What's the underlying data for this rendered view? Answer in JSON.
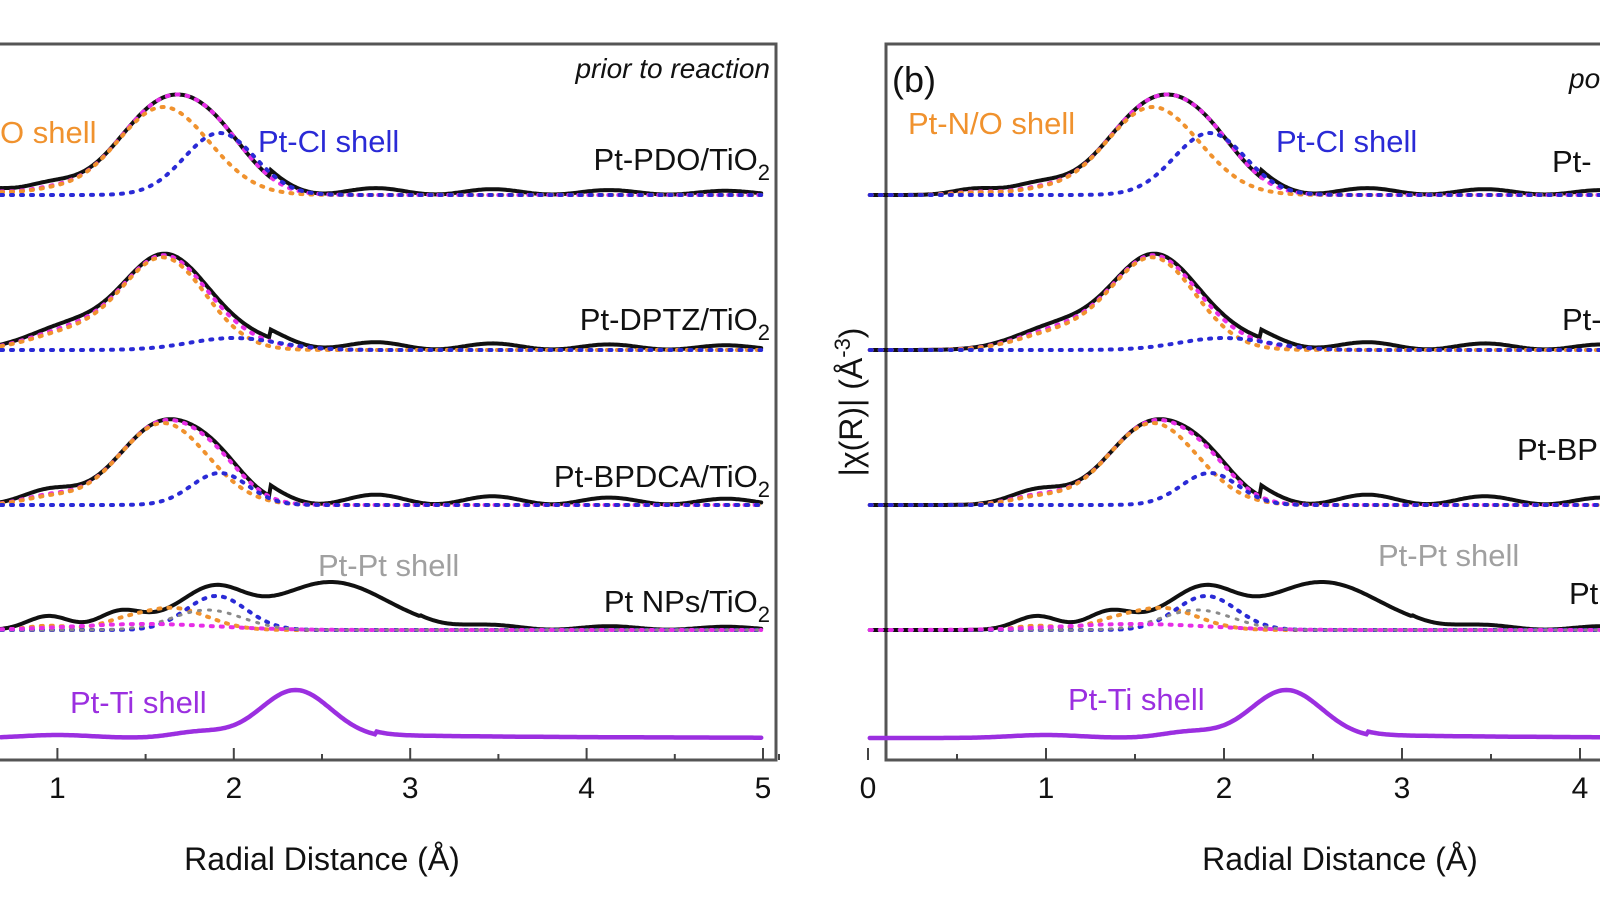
{
  "chart_data": [
    {
      "type": "line",
      "panel_label": "",
      "condition": "prior to reaction",
      "xlabel": "Radial Distance (Å)",
      "xlim": [
        0,
        5
      ],
      "x_ticks": [
        "1",
        "2",
        "3",
        "4",
        "5"
      ],
      "sample_labels": [
        {
          "main": "Pt-PDO/TiO",
          "sub": "2"
        },
        {
          "main": "Pt-DPTZ/TiO",
          "sub": "2"
        },
        {
          "main": "Pt-BPDCA/TiO",
          "sub": "2"
        },
        {
          "main": "Pt NPs/TiO",
          "sub": "2"
        }
      ],
      "shell_labels": [
        {
          "text": "O shell",
          "color": "#f0922e"
        },
        {
          "text": "Pt-Cl shell",
          "color": "#2a2ad6"
        },
        {
          "text": "Pt-Pt shell",
          "color": "#a0a0a0"
        },
        {
          "text": "Pt-Ti shell",
          "color": "#9b2fe0"
        }
      ]
    },
    {
      "type": "line",
      "panel_label": "(b)",
      "condition": "po",
      "xlabel": "Radial Distance (Å)",
      "ylabel_main": "|χ(R)|  (Å",
      "ylabel_sup": "-3",
      "ylabel_close": ")",
      "xlim": [
        0,
        4
      ],
      "x_ticks": [
        "0",
        "1",
        "2",
        "3",
        "4"
      ],
      "sample_labels": [
        {
          "main": "Pt-"
        },
        {
          "main": "Pt-D"
        },
        {
          "main": "Pt-BP"
        },
        {
          "main": "Pt"
        }
      ],
      "shell_labels": [
        {
          "text": "Pt-N/O shell",
          "color": "#f0922e"
        },
        {
          "text": "Pt-Cl shell",
          "color": "#2a2ad6"
        },
        {
          "text": "Pt-Pt shell",
          "color": "#a0a0a0"
        },
        {
          "text": "Pt-Ti shell",
          "color": "#9b2fe0"
        }
      ]
    }
  ]
}
